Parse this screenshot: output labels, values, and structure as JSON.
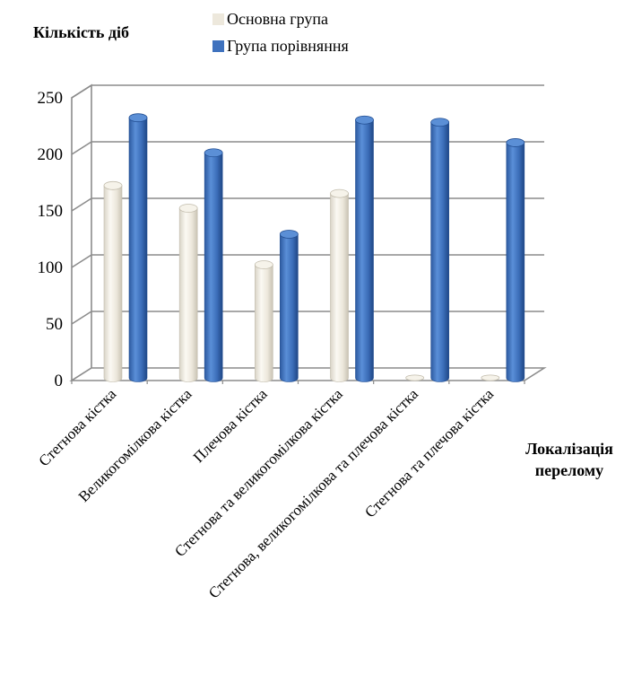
{
  "chart_data": {
    "type": "bar",
    "ylabel": "Кількість діб",
    "xlabel": "Локалізація перелому",
    "categories": [
      "Стегнова кістка",
      "Великогомілкова кістка",
      "Плечова кістка",
      "Стегнова та великогомілкова кістка",
      "Стегнова, великогомілкова та плечова кістка",
      "Стегнова та плечова кістка"
    ],
    "series": [
      {
        "name": "Основна група",
        "values": [
          170,
          150,
          100,
          163,
          0,
          0
        ],
        "color": "#ede8dc"
      },
      {
        "name": "Група порівняння",
        "values": [
          230,
          199,
          127,
          228,
          226,
          208
        ],
        "color": "#3f72be"
      }
    ],
    "ylim": [
      0,
      250
    ],
    "yticks": [
      0,
      50,
      100,
      150,
      200,
      250
    ],
    "grid": true,
    "legend_position": "top-center",
    "style": "3d-cylinder"
  }
}
